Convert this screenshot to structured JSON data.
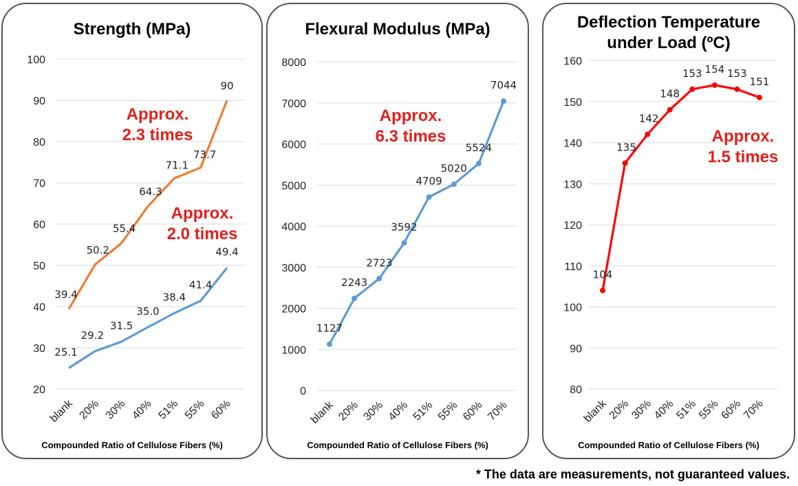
{
  "footnote": "* The data are measurements, not guaranteed values.",
  "chart_data": [
    {
      "type": "line",
      "title": "Strength (MPa)",
      "xlabel": "Compounded Ratio of Cellulose Fibers (%)",
      "ylabel": "",
      "categories": [
        "blank",
        "20%",
        "30%",
        "40%",
        "51%",
        "55%",
        "60%"
      ],
      "ylim": [
        20,
        100
      ],
      "yticks": [
        20,
        30,
        40,
        50,
        60,
        70,
        80,
        90,
        100
      ],
      "grid": true,
      "series": [
        {
          "values": [
            39.4,
            50.2,
            55.4,
            64.3,
            71.1,
            73.7,
            90
          ],
          "labels": [
            "39.4",
            "50.2",
            "55.4",
            "64.3",
            "71.1",
            "73.7",
            "90"
          ],
          "color": "#ed7d31",
          "markers": false
        },
        {
          "values": [
            25.1,
            29.2,
            31.5,
            35.0,
            38.4,
            41.4,
            49.4
          ],
          "labels": [
            "25.1",
            "29.2",
            "31.5",
            "35.0",
            "38.4",
            "41.4",
            "49.4"
          ],
          "color": "#5b9bd5",
          "markers": false
        }
      ],
      "annotations": [
        {
          "lines": [
            "Approx.",
            "2.3 times"
          ],
          "color": "#e0201b"
        },
        {
          "lines": [
            "Approx.",
            "2.0 times"
          ],
          "color": "#e0201b"
        }
      ]
    },
    {
      "type": "line",
      "title": "Flexural Modulus (MPa)",
      "xlabel": "Compounded Ratio of Cellulose Fibers (%)",
      "ylabel": "",
      "categories": [
        "blank",
        "20%",
        "30%",
        "40%",
        "51%",
        "55%",
        "60%",
        "70%"
      ],
      "ylim": [
        0,
        8000
      ],
      "yticks": [
        0,
        1000,
        2000,
        3000,
        4000,
        5000,
        6000,
        7000,
        8000
      ],
      "grid": true,
      "series": [
        {
          "values": [
            1127,
            2243,
            2723,
            3592,
            4709,
            5020,
            5524,
            7044
          ],
          "labels": [
            "1127",
            "2243",
            "2723",
            "3592",
            "4709",
            "5020",
            "5524",
            "7044"
          ],
          "color": "#5b9bd5",
          "markers": true
        }
      ],
      "annotations": [
        {
          "lines": [
            "Approx.",
            "6.3 times"
          ],
          "color": "#e0201b"
        }
      ]
    },
    {
      "type": "line",
      "title": "Deflection Temperature under Load (ºC)",
      "title_lines": [
        "Deflection Temperature",
        "under Load (ºC)"
      ],
      "xlabel": "Compounded Ratio of Cellulose Fibers (%)",
      "ylabel": "",
      "categories": [
        "blank",
        "20%",
        "30%",
        "40%",
        "51%",
        "55%",
        "60%",
        "70%"
      ],
      "ylim": [
        80,
        160
      ],
      "yticks": [
        80,
        90,
        100,
        110,
        120,
        130,
        140,
        150,
        160
      ],
      "grid": true,
      "series": [
        {
          "values": [
            104,
            135,
            142,
            148,
            153,
            154,
            153,
            151
          ],
          "labels": [
            "104",
            "135",
            "142",
            "148",
            "153",
            "154",
            "153",
            "151"
          ],
          "color": "#ff0000",
          "markers": true
        }
      ],
      "annotations": [
        {
          "lines": [
            "Approx.",
            "1.5 times"
          ],
          "color": "#e0201b"
        }
      ]
    }
  ]
}
